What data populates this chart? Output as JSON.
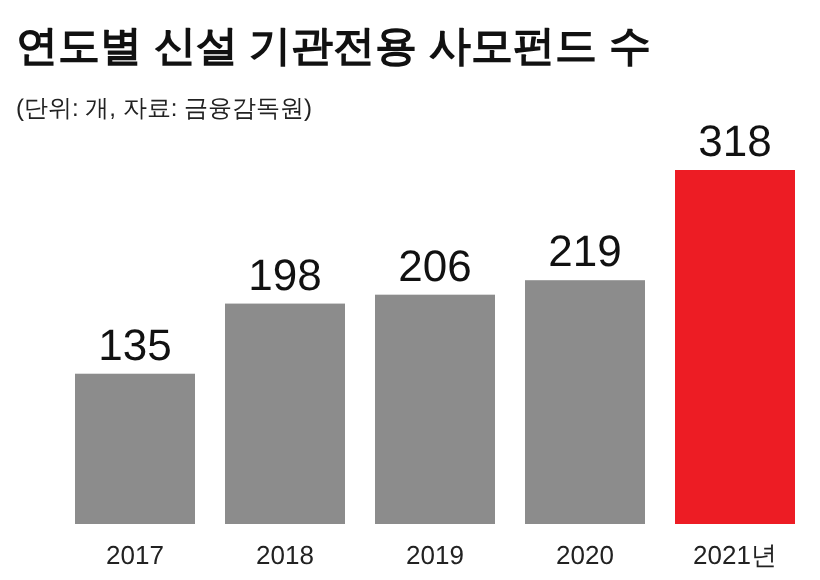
{
  "chart_data": {
    "type": "bar",
    "title": "연도별 신설 기관전용 사모펀드 수",
    "subtitle": "(단위: 개, 자료: 금융감독원)",
    "categories": [
      "2017",
      "2018",
      "2019",
      "2020",
      "2021년"
    ],
    "values": [
      135,
      198,
      206,
      219,
      318
    ],
    "colors": [
      "#8c8c8c",
      "#8c8c8c",
      "#8c8c8c",
      "#8c8c8c",
      "#ed1c24"
    ],
    "data_labels": true
  }
}
